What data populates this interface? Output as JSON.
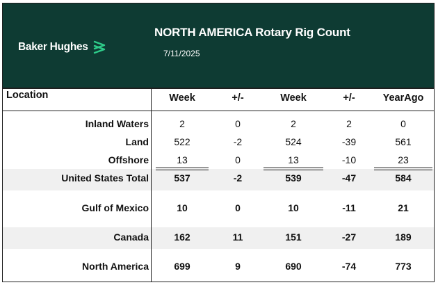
{
  "header": {
    "logo_text": "Baker Hughes",
    "title": "NORTH AMERICA Rotary Rig Count",
    "date": "7/11/2025",
    "brand_color": "#0e3b33",
    "logo_mark_color": "#2ecc8a"
  },
  "table": {
    "location_header": "Location",
    "columns": [
      "Week",
      "+/-",
      "Week",
      "+/-",
      "YearAgo"
    ],
    "rows": [
      {
        "label": "Inland Waters",
        "values": [
          "2",
          "0",
          "2",
          "2",
          "0"
        ]
      },
      {
        "label": "Land",
        "values": [
          "522",
          "-2",
          "524",
          "-39",
          "561"
        ]
      },
      {
        "label": "Offshore",
        "values": [
          "13",
          "0",
          "13",
          "-10",
          "23"
        ]
      },
      {
        "label": "United States Total",
        "values": [
          "537",
          "-2",
          "539",
          "-47",
          "584"
        ]
      },
      {
        "label": "Gulf of Mexico",
        "values": [
          "10",
          "0",
          "10",
          "-11",
          "21"
        ]
      },
      {
        "label": "Canada",
        "values": [
          "162",
          "11",
          "151",
          "-27",
          "189"
        ]
      },
      {
        "label": "North America",
        "values": [
          "699",
          "9",
          "690",
          "-74",
          "773"
        ]
      }
    ]
  }
}
